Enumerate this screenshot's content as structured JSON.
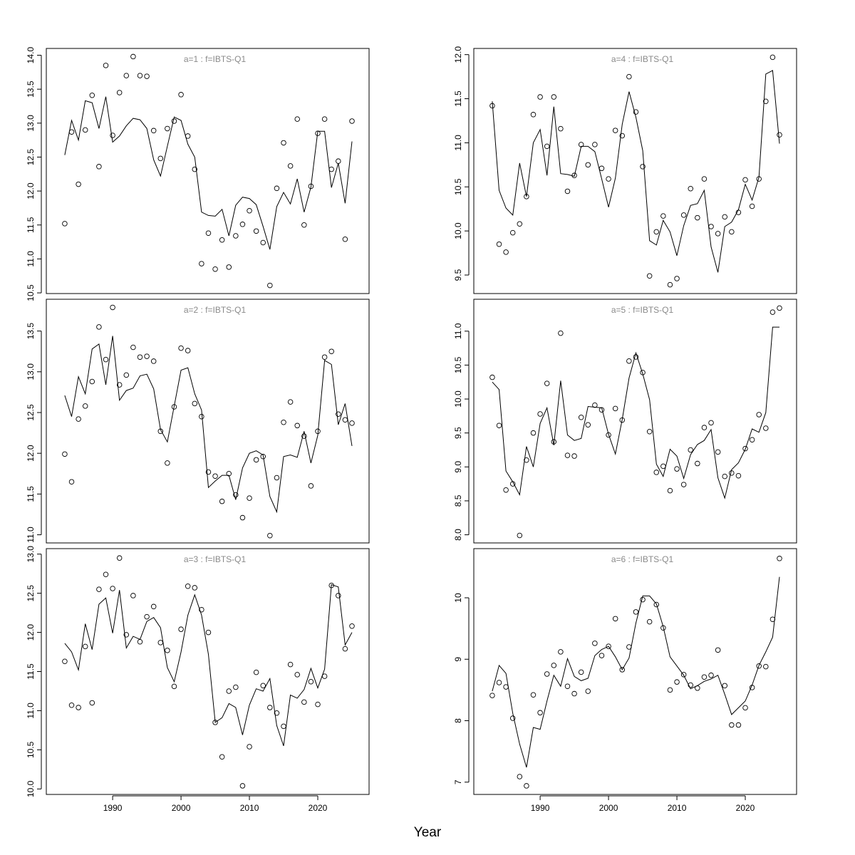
{
  "xlabel": "Year",
  "chart_data": [
    {
      "type": "line+scatter",
      "title": "a=1  :  f=IBTS-Q1",
      "xlim": [
        1980.3,
        2027.5
      ],
      "ylim": [
        10.49,
        14.1
      ],
      "yticks": [
        10.5,
        11.0,
        11.5,
        12.0,
        12.5,
        13.0,
        13.5,
        14.0
      ],
      "xticks": [],
      "x_start": 1983,
      "points": [
        11.52,
        12.87,
        12.1,
        12.9,
        13.41,
        12.36,
        13.85,
        12.82,
        13.45,
        13.7,
        13.98,
        13.7,
        13.69,
        12.89,
        12.48,
        12.92,
        13.03,
        13.42,
        12.81,
        12.32,
        10.93,
        11.38,
        10.85,
        11.28,
        10.88,
        11.34,
        11.51,
        11.71,
        11.41,
        11.24,
        10.61,
        12.04,
        12.71,
        12.37,
        13.06,
        11.5,
        12.07,
        12.85,
        13.06,
        12.32,
        12.44,
        11.29,
        13.03
      ],
      "line": [
        12.53,
        13.04,
        12.75,
        13.33,
        13.3,
        12.92,
        13.39,
        12.72,
        12.81,
        12.96,
        13.07,
        13.05,
        12.92,
        12.46,
        12.22,
        12.66,
        13.09,
        13.04,
        12.69,
        12.5,
        11.69,
        11.64,
        11.63,
        11.73,
        11.34,
        11.79,
        11.91,
        11.89,
        11.8,
        11.48,
        11.14,
        11.77,
        11.98,
        11.81,
        12.18,
        11.69,
        12.06,
        12.88,
        12.88,
        12.05,
        12.41,
        11.82,
        12.73
      ]
    },
    {
      "type": "line+scatter",
      "title": "a=2  :  f=IBTS-Q1",
      "xlim": [
        1980.3,
        2027.5
      ],
      "ylim": [
        10.9,
        13.89
      ],
      "yticks": [
        11.0,
        11.5,
        12.0,
        12.5,
        13.0,
        13.5
      ],
      "xticks": [],
      "x_start": 1983,
      "points": [
        11.99,
        11.65,
        12.42,
        12.58,
        12.88,
        13.55,
        13.15,
        13.79,
        12.84,
        12.96,
        13.3,
        13.18,
        13.19,
        13.13,
        12.27,
        11.88,
        12.57,
        13.29,
        13.26,
        12.61,
        12.45,
        11.77,
        11.72,
        11.41,
        11.75,
        11.49,
        11.21,
        11.45,
        11.92,
        11.96,
        10.99,
        11.7,
        12.38,
        12.63,
        12.34,
        12.21,
        11.6,
        12.27,
        13.18,
        13.25,
        12.48,
        12.41,
        12.37
      ],
      "line": [
        12.71,
        12.45,
        12.94,
        12.73,
        13.28,
        13.34,
        12.84,
        13.44,
        12.65,
        12.77,
        12.8,
        12.95,
        12.97,
        12.79,
        12.29,
        12.14,
        12.58,
        13.02,
        13.05,
        12.73,
        12.53,
        11.58,
        11.66,
        11.73,
        11.73,
        11.43,
        11.82,
        12.0,
        12.03,
        11.98,
        11.47,
        11.28,
        11.96,
        11.98,
        11.95,
        12.27,
        11.88,
        12.22,
        13.14,
        13.09,
        12.35,
        12.61,
        12.09
      ]
    },
    {
      "type": "line+scatter",
      "title": "a=3  :  f=IBTS-Q1",
      "xlim": [
        1980.3,
        2027.5
      ],
      "ylim": [
        9.93,
        13.07
      ],
      "yticks": [
        10.0,
        10.5,
        11.0,
        11.5,
        12.0,
        12.5,
        13.0
      ],
      "xticks": [
        1990,
        2000,
        2010,
        2020
      ],
      "x_start": 1983,
      "points": [
        11.63,
        11.07,
        11.04,
        11.82,
        11.1,
        12.55,
        12.74,
        12.56,
        12.95,
        11.97,
        12.47,
        11.88,
        12.2,
        12.33,
        11.87,
        11.77,
        11.31,
        12.04,
        12.59,
        12.57,
        12.29,
        12.0,
        10.85,
        10.41,
        11.25,
        11.3,
        10.04,
        10.54,
        11.49,
        11.32,
        11.04,
        10.97,
        10.8,
        11.59,
        11.46,
        11.11,
        11.37,
        11.08,
        11.44,
        12.6,
        12.47,
        11.79,
        12.08
      ],
      "line": [
        11.86,
        11.75,
        11.52,
        12.11,
        11.78,
        12.36,
        12.44,
        11.99,
        12.54,
        11.8,
        11.95,
        11.91,
        12.14,
        12.19,
        12.06,
        11.55,
        11.37,
        11.75,
        12.22,
        12.48,
        12.22,
        11.72,
        10.85,
        10.91,
        11.09,
        11.04,
        10.69,
        11.07,
        11.28,
        11.25,
        11.41,
        10.81,
        10.55,
        11.2,
        11.16,
        11.27,
        11.54,
        11.29,
        11.53,
        12.61,
        12.58,
        11.84,
        12.0
      ]
    },
    {
      "type": "line+scatter",
      "title": "a=4  :  f=IBTS-Q1",
      "xlim": [
        1980.3,
        2027.5
      ],
      "ylim": [
        9.29,
        12.07
      ],
      "yticks": [
        9.5,
        10.0,
        10.5,
        11.0,
        11.5,
        12.0
      ],
      "xticks": [],
      "x_start": 1983,
      "points": [
        11.42,
        9.85,
        9.76,
        9.98,
        10.08,
        10.39,
        11.32,
        11.52,
        10.96,
        11.52,
        11.16,
        10.45,
        10.63,
        10.98,
        10.75,
        10.98,
        10.71,
        10.59,
        11.14,
        11.08,
        11.75,
        11.35,
        10.73,
        9.49,
        9.99,
        10.17,
        9.39,
        9.46,
        10.18,
        10.48,
        10.15,
        10.59,
        10.05,
        9.97,
        10.16,
        9.99,
        10.21,
        10.58,
        10.28,
        10.59,
        11.47,
        11.97,
        11.09
      ],
      "line": [
        11.47,
        10.46,
        10.26,
        10.18,
        10.77,
        10.39,
        11.0,
        11.15,
        10.63,
        11.41,
        10.65,
        10.64,
        10.62,
        10.96,
        10.96,
        10.9,
        10.59,
        10.27,
        10.6,
        11.21,
        11.58,
        11.29,
        10.91,
        9.89,
        9.84,
        10.12,
        9.99,
        9.72,
        10.06,
        10.29,
        10.31,
        10.46,
        9.82,
        9.53,
        10.05,
        10.1,
        10.24,
        10.53,
        10.35,
        10.61,
        11.78,
        11.82,
        10.99
      ]
    },
    {
      "type": "line+scatter",
      "title": "a=5  :  f=IBTS-Q1",
      "xlim": [
        1980.3,
        2027.5
      ],
      "ylim": [
        7.88,
        11.47
      ],
      "yticks": [
        8.0,
        8.5,
        9.0,
        9.5,
        10.0,
        10.5,
        11.0
      ],
      "xticks": [],
      "x_start": 1983,
      "points": [
        10.32,
        9.61,
        8.66,
        8.75,
        7.99,
        9.1,
        9.5,
        9.78,
        10.23,
        9.37,
        10.97,
        9.17,
        9.16,
        9.73,
        9.62,
        9.91,
        9.84,
        9.47,
        9.86,
        9.69,
        10.56,
        10.62,
        10.39,
        9.52,
        8.92,
        9.01,
        8.65,
        8.97,
        8.74,
        9.25,
        9.05,
        9.58,
        9.65,
        9.22,
        8.86,
        8.91,
        8.87,
        9.27,
        9.4,
        9.77,
        9.57,
        11.28,
        11.34
      ],
      "line": [
        10.25,
        10.14,
        8.94,
        8.78,
        8.59,
        9.3,
        9.0,
        9.64,
        9.87,
        9.32,
        10.27,
        9.47,
        9.39,
        9.42,
        9.89,
        9.88,
        9.87,
        9.48,
        9.19,
        9.7,
        10.31,
        10.68,
        10.37,
        9.99,
        9.04,
        8.86,
        9.26,
        9.16,
        8.83,
        9.18,
        9.33,
        9.39,
        9.55,
        8.84,
        8.54,
        8.96,
        9.06,
        9.26,
        9.56,
        9.51,
        9.8,
        11.06,
        11.06
      ]
    },
    {
      "type": "line+scatter",
      "title": "a=6  :  f=IBTS-Q1",
      "xlim": [
        1980.3,
        2027.5
      ],
      "ylim": [
        6.8,
        10.8
      ],
      "yticks": [
        7,
        8,
        9,
        10
      ],
      "xticks": [
        1990,
        2000,
        2010,
        2020
      ],
      "x_start": 1983,
      "points": [
        8.41,
        8.62,
        8.55,
        8.04,
        7.09,
        6.94,
        8.42,
        8.13,
        8.76,
        8.9,
        9.12,
        8.56,
        8.44,
        8.79,
        8.48,
        9.26,
        9.06,
        9.21,
        9.66,
        8.83,
        9.2,
        9.77,
        9.97,
        9.61,
        9.89,
        9.51,
        8.5,
        8.63,
        8.75,
        8.58,
        8.53,
        8.71,
        8.74,
        9.15,
        8.57,
        7.93,
        7.93,
        8.21,
        8.54,
        8.89,
        8.88,
        9.65,
        10.64
      ],
      "line": [
        8.48,
        8.9,
        8.77,
        8.12,
        7.62,
        7.24,
        7.89,
        7.86,
        8.32,
        8.74,
        8.56,
        9.01,
        8.72,
        8.65,
        8.69,
        9.06,
        9.16,
        9.21,
        9.04,
        8.83,
        9.02,
        9.59,
        10.03,
        10.03,
        9.9,
        9.53,
        9.04,
        8.89,
        8.74,
        8.52,
        8.57,
        8.64,
        8.68,
        8.74,
        8.43,
        8.1,
        8.21,
        8.32,
        8.58,
        8.9,
        9.12,
        9.36,
        10.34
      ]
    }
  ],
  "colors": {
    "line": "#000000",
    "points": "#000000",
    "panel_title": "#8a8a8a"
  }
}
